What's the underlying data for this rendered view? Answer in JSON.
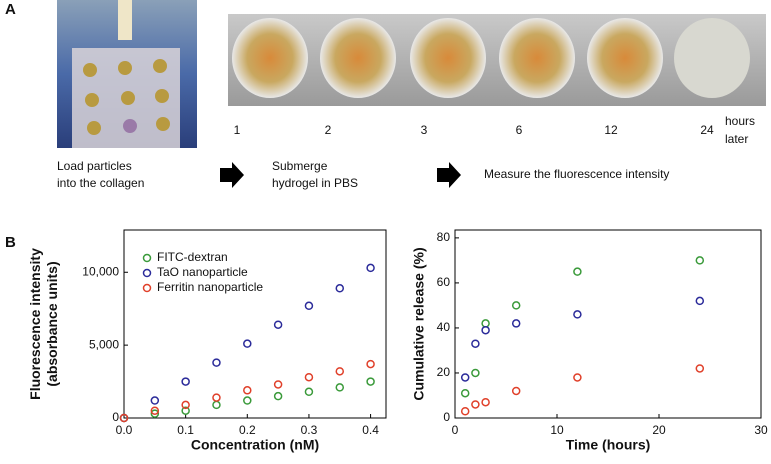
{
  "panel_a": {
    "label": "A",
    "wells": [
      "1",
      "2",
      "3",
      "6",
      "12",
      "24"
    ],
    "hours_label": [
      "hours",
      "later"
    ],
    "steps": [
      [
        "Load particles",
        "into the collagen"
      ],
      [
        "Submerge",
        "hydrogel in PBS"
      ],
      [
        "Measure the fluorescence intensity"
      ]
    ]
  },
  "panel_b": {
    "label": "B"
  },
  "chart_data": [
    {
      "type": "scatter",
      "y_label": [
        "Fluorescence intensity",
        "(absorbance units)"
      ],
      "x_label": "Concentration (nM)",
      "xlim": [
        0,
        0.425
      ],
      "xticks": [
        {
          "value": 0,
          "label": "0.0"
        },
        0.1,
        0.2,
        0.3,
        0.4
      ],
      "ylim": [
        0,
        12900
      ],
      "yticks": [
        0,
        {
          "value": 5000,
          "label": "5,000"
        },
        {
          "value": 10000,
          "label": "10,000"
        }
      ],
      "x": [
        0,
        0.05,
        0.1,
        0.15,
        0.2,
        0.25,
        0.3,
        0.35,
        0.4
      ],
      "series": [
        {
          "name": "FITC-dextran",
          "color": "#3a9a3a",
          "values": [
            0,
            300,
            500,
            900,
            1200,
            1500,
            1800,
            2100,
            2500
          ]
        },
        {
          "name": "TaO nanoparticle",
          "color": "#2b2b9a",
          "values": [
            0,
            1200,
            2500,
            3800,
            5100,
            6400,
            7700,
            8900,
            10300
          ]
        },
        {
          "name": "Ferritin nanoparticle",
          "color": "#e0402a",
          "values": [
            0,
            500,
            900,
            1400,
            1900,
            2300,
            2800,
            3200,
            3700
          ]
        }
      ]
    },
    {
      "type": "scatter",
      "y_label": [
        "Cumulative release (%)"
      ],
      "x_label": "Time (hours)",
      "xlim": [
        0,
        30
      ],
      "xticks": [
        0,
        10,
        20,
        30
      ],
      "ylim": [
        0,
        83.5
      ],
      "yticks": [
        0,
        20,
        40,
        60,
        80
      ],
      "x": [
        1,
        2,
        3,
        6,
        12,
        24
      ],
      "series": [
        {
          "color": "#3a9a3a",
          "values": [
            11,
            20,
            42,
            50,
            65,
            70
          ]
        },
        {
          "color": "#2b2b9a",
          "values": [
            18,
            33,
            39,
            42,
            46,
            52
          ]
        },
        {
          "color": "#e0402a",
          "values": [
            3,
            6,
            7,
            12,
            18,
            22
          ]
        }
      ]
    }
  ]
}
